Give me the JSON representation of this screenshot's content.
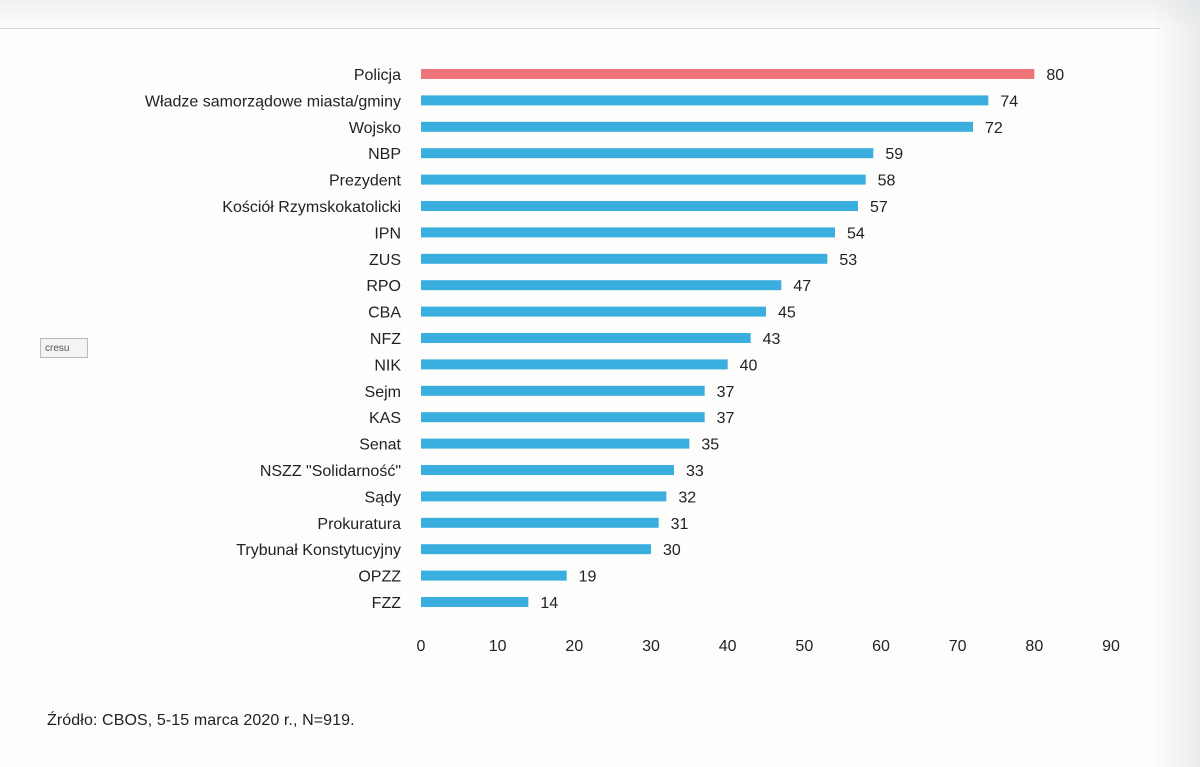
{
  "source_note": "Źródło: CBOS, 5-15 marca 2020 r., N=919.",
  "tooltip_text": "cresu",
  "colors": {
    "highlight": "#ee7479",
    "bar": "#3aaedf",
    "text": "#222222"
  },
  "chart_data": {
    "type": "bar",
    "orientation": "horizontal",
    "categories": [
      "Policja",
      "Władze samorządowe miasta/gminy",
      "Wojsko",
      "NBP",
      "Prezydent",
      "Kościół Rzymskokatolicki",
      "IPN",
      "ZUS",
      "RPO",
      "CBA",
      "NFZ",
      "NIK",
      "Sejm",
      "KAS",
      "Senat",
      "NSZZ \"Solidarność\"",
      "Sądy",
      "Prokuratura",
      "Trybunał Konstytucyjny",
      "OPZZ",
      "FZZ"
    ],
    "values": [
      80,
      74,
      72,
      59,
      58,
      57,
      54,
      53,
      47,
      45,
      43,
      40,
      37,
      37,
      35,
      33,
      32,
      31,
      30,
      19,
      14
    ],
    "highlight_index": 0,
    "xlim": [
      0,
      90
    ],
    "xticks": [
      "0",
      "10",
      "20",
      "30",
      "40",
      "50",
      "60",
      "70",
      "80",
      "90"
    ],
    "grid": false,
    "data_labels": true
  }
}
